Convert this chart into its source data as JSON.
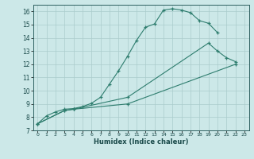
{
  "xlabel": "Humidex (Indice chaleur)",
  "bg_color": "#cce8e8",
  "grid_color": "#aacccc",
  "line_color": "#2e7d6e",
  "xlim": [
    -0.5,
    23.5
  ],
  "ylim": [
    7,
    16.5
  ],
  "xticks": [
    0,
    1,
    2,
    3,
    4,
    5,
    6,
    7,
    8,
    9,
    10,
    11,
    12,
    13,
    14,
    15,
    16,
    17,
    18,
    19,
    20,
    21,
    22,
    23
  ],
  "yticks": [
    7,
    8,
    9,
    10,
    11,
    12,
    13,
    14,
    15,
    16
  ],
  "line1_x": [
    0,
    1,
    2,
    3,
    4,
    5,
    6,
    7,
    8,
    9,
    10,
    11,
    12,
    13,
    14,
    15,
    16,
    17,
    18,
    19,
    20
  ],
  "line1_y": [
    7.5,
    8.1,
    8.4,
    8.6,
    8.65,
    8.8,
    9.05,
    9.5,
    10.5,
    11.5,
    12.6,
    13.8,
    14.8,
    15.05,
    16.1,
    16.2,
    16.1,
    15.9,
    15.3,
    15.1,
    14.4
  ],
  "line2_x": [
    0,
    3,
    4,
    10,
    19,
    20,
    21,
    22
  ],
  "line2_y": [
    7.5,
    8.5,
    8.6,
    9.5,
    13.6,
    13.0,
    12.5,
    12.2
  ],
  "line3_x": [
    0,
    3,
    4,
    10,
    22
  ],
  "line3_y": [
    7.5,
    8.5,
    8.6,
    9.0,
    12.0
  ]
}
